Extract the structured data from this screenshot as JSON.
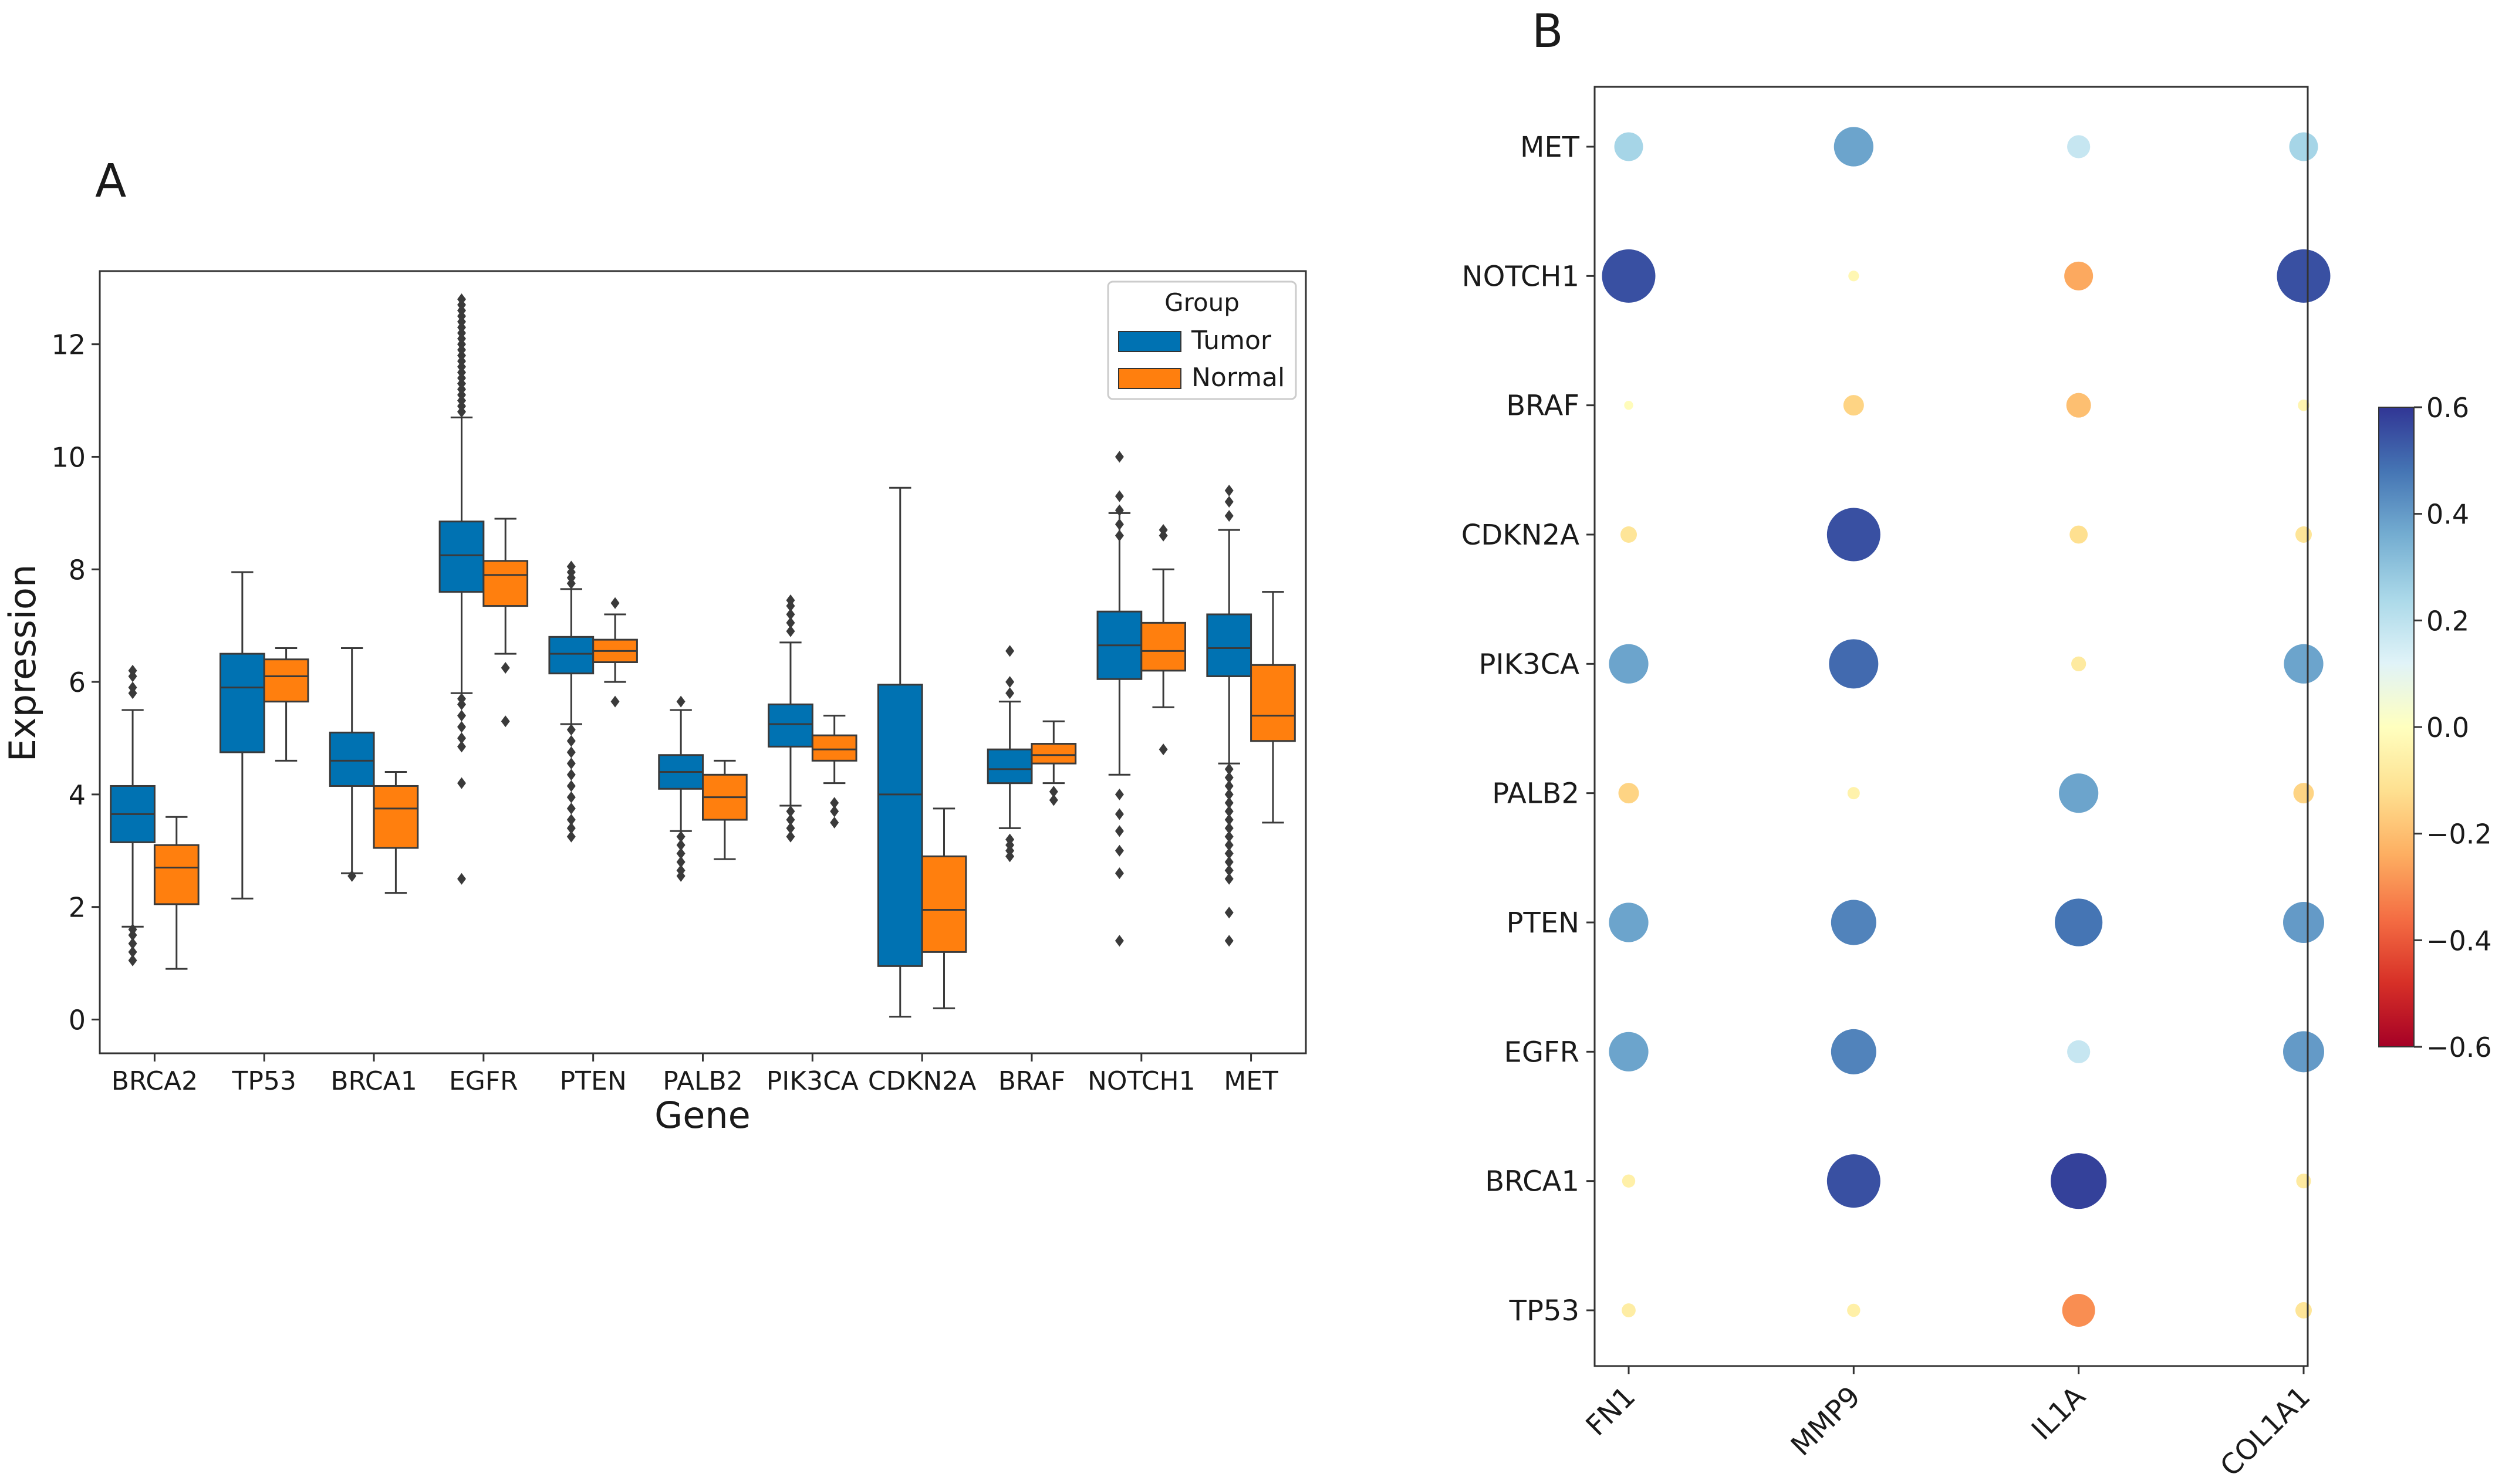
{
  "chart_data": [
    {
      "type": "box",
      "panel_label": "A",
      "title": "",
      "xlabel": "Gene",
      "ylabel": "Expression",
      "ylim": [
        -0.6,
        13.3
      ],
      "yticks": [
        0,
        2,
        4,
        6,
        8,
        10,
        12
      ],
      "categories": [
        "BRCA2",
        "TP53",
        "BRCA1",
        "EGFR",
        "PTEN",
        "PALB2",
        "PIK3CA",
        "CDKN2A",
        "BRAF",
        "NOTCH1",
        "MET"
      ],
      "legend": {
        "title": "Group",
        "position": "top-right"
      },
      "series": [
        {
          "name": "Tumor",
          "color": "#0072B2",
          "boxes": [
            {
              "q1": 3.15,
              "median": 3.65,
              "q3": 4.15,
              "whislo": 1.65,
              "whishi": 5.5,
              "fliers": [
                6.2,
                6.1,
                5.9,
                5.8,
                1.6,
                1.5,
                1.35,
                1.2,
                1.05
              ]
            },
            {
              "q1": 4.75,
              "median": 5.9,
              "q3": 6.5,
              "whislo": 2.15,
              "whishi": 7.95,
              "fliers": []
            },
            {
              "q1": 4.15,
              "median": 4.6,
              "q3": 5.1,
              "whislo": 2.6,
              "whishi": 6.6,
              "fliers": [
                2.55
              ]
            },
            {
              "q1": 7.6,
              "median": 8.25,
              "q3": 8.85,
              "whislo": 5.8,
              "whishi": 10.7,
              "fliers": [
                12.8,
                12.7,
                12.6,
                12.5,
                12.4,
                12.3,
                12.2,
                12.1,
                12.0,
                11.9,
                11.8,
                11.7,
                11.6,
                11.5,
                11.4,
                11.3,
                11.2,
                11.1,
                11.0,
                10.9,
                10.8,
                5.7,
                5.6,
                5.4,
                5.2,
                5.0,
                4.85,
                4.2,
                2.5
              ]
            },
            {
              "q1": 6.15,
              "median": 6.5,
              "q3": 6.8,
              "whislo": 5.25,
              "whishi": 7.65,
              "fliers": [
                8.05,
                7.95,
                7.85,
                7.75,
                5.15,
                4.95,
                4.75,
                4.55,
                4.35,
                4.15,
                3.95,
                3.75,
                3.55,
                3.4,
                3.25
              ]
            },
            {
              "q1": 4.1,
              "median": 4.4,
              "q3": 4.7,
              "whislo": 3.35,
              "whishi": 5.5,
              "fliers": [
                5.65,
                3.25,
                3.1,
                2.95,
                2.8,
                2.65,
                2.55
              ]
            },
            {
              "q1": 4.85,
              "median": 5.25,
              "q3": 5.6,
              "whislo": 3.8,
              "whishi": 6.7,
              "fliers": [
                7.45,
                7.35,
                7.2,
                7.05,
                6.9,
                3.7,
                3.55,
                3.4,
                3.25
              ]
            },
            {
              "q1": 0.95,
              "median": 4.0,
              "q3": 5.95,
              "whislo": 0.05,
              "whishi": 9.45,
              "fliers": []
            },
            {
              "q1": 4.2,
              "median": 4.45,
              "q3": 4.8,
              "whislo": 3.4,
              "whishi": 5.65,
              "fliers": [
                6.55,
                6.0,
                5.8,
                3.2,
                3.1,
                3.0,
                2.9
              ]
            },
            {
              "q1": 6.05,
              "median": 6.65,
              "q3": 7.25,
              "whislo": 4.35,
              "whishi": 9.0,
              "fliers": [
                10.0,
                9.3,
                9.05,
                8.8,
                8.6,
                4.0,
                3.65,
                3.35,
                3.0,
                2.6,
                1.4
              ]
            },
            {
              "q1": 6.1,
              "median": 6.6,
              "q3": 7.2,
              "whislo": 4.55,
              "whishi": 8.7,
              "fliers": [
                9.4,
                9.2,
                8.95,
                4.45,
                4.3,
                4.15,
                4.0,
                3.85,
                3.7,
                3.55,
                3.4,
                3.25,
                3.1,
                2.95,
                2.8,
                2.65,
                2.5,
                1.9,
                1.4
              ]
            }
          ]
        },
        {
          "name": "Normal",
          "color": "#FF7F0E",
          "boxes": [
            {
              "q1": 2.05,
              "median": 2.7,
              "q3": 3.1,
              "whislo": 0.9,
              "whishi": 3.6,
              "fliers": []
            },
            {
              "q1": 5.65,
              "median": 6.1,
              "q3": 6.4,
              "whislo": 4.6,
              "whishi": 6.6,
              "fliers": []
            },
            {
              "q1": 3.05,
              "median": 3.75,
              "q3": 4.15,
              "whislo": 2.25,
              "whishi": 4.4,
              "fliers": []
            },
            {
              "q1": 7.35,
              "median": 7.9,
              "q3": 8.15,
              "whislo": 6.5,
              "whishi": 8.9,
              "fliers": [
                6.25,
                5.3
              ]
            },
            {
              "q1": 6.35,
              "median": 6.55,
              "q3": 6.75,
              "whislo": 6.0,
              "whishi": 7.2,
              "fliers": [
                7.4,
                5.65
              ]
            },
            {
              "q1": 3.55,
              "median": 3.95,
              "q3": 4.35,
              "whislo": 2.85,
              "whishi": 4.6,
              "fliers": []
            },
            {
              "q1": 4.6,
              "median": 4.8,
              "q3": 5.05,
              "whislo": 4.2,
              "whishi": 5.4,
              "fliers": [
                3.85,
                3.7,
                3.5
              ]
            },
            {
              "q1": 1.2,
              "median": 1.95,
              "q3": 2.9,
              "whislo": 0.2,
              "whishi": 3.75,
              "fliers": []
            },
            {
              "q1": 4.55,
              "median": 4.7,
              "q3": 4.9,
              "whislo": 4.2,
              "whishi": 5.3,
              "fliers": [
                4.05,
                3.9
              ]
            },
            {
              "q1": 6.2,
              "median": 6.55,
              "q3": 7.05,
              "whislo": 5.55,
              "whishi": 8.0,
              "fliers": [
                8.7,
                8.6,
                4.8
              ]
            },
            {
              "q1": 4.95,
              "median": 5.4,
              "q3": 6.3,
              "whislo": 3.5,
              "whishi": 7.6,
              "fliers": []
            }
          ]
        }
      ]
    },
    {
      "type": "scatter",
      "subtype": "dot-heatmap",
      "panel_label": "B",
      "title": "",
      "x_categories": [
        "FN1",
        "MMP9",
        "IL1A",
        "COL1A1"
      ],
      "y_categories": [
        "TP53",
        "BRCA1",
        "EGFR",
        "PTEN",
        "PALB2",
        "PIK3CA",
        "CDKN2A",
        "BRAF",
        "NOTCH1",
        "MET"
      ],
      "colorbar": {
        "vmin": -0.6,
        "vmax": 0.6,
        "ticks": [
          "0.6",
          "0.4",
          "0.2",
          "0.0",
          "−0.2",
          "−0.4",
          "−0.6"
        ],
        "cmap": "RdYlBu"
      },
      "values": [
        {
          "y": "MET",
          "x": "FN1",
          "value": 0.25
        },
        {
          "y": "MET",
          "x": "MMP9",
          "value": 0.38
        },
        {
          "y": "MET",
          "x": "IL1A",
          "value": 0.18
        },
        {
          "y": "MET",
          "x": "COL1A1",
          "value": 0.25
        },
        {
          "y": "NOTCH1",
          "x": "FN1",
          "value": 0.55
        },
        {
          "y": "NOTCH1",
          "x": "MMP9",
          "value": -0.03
        },
        {
          "y": "NOTCH1",
          "x": "IL1A",
          "value": -0.25
        },
        {
          "y": "NOTCH1",
          "x": "COL1A1",
          "value": 0.55
        },
        {
          "y": "BRAF",
          "x": "FN1",
          "value": -0.01
        },
        {
          "y": "BRAF",
          "x": "MMP9",
          "value": -0.15
        },
        {
          "y": "BRAF",
          "x": "IL1A",
          "value": -0.2
        },
        {
          "y": "BRAF",
          "x": "COL1A1",
          "value": -0.04
        },
        {
          "y": "CDKN2A",
          "x": "FN1",
          "value": -0.1
        },
        {
          "y": "CDKN2A",
          "x": "MMP9",
          "value": 0.55
        },
        {
          "y": "CDKN2A",
          "x": "IL1A",
          "value": -0.12
        },
        {
          "y": "CDKN2A",
          "x": "COL1A1",
          "value": -0.1
        },
        {
          "y": "PIK3CA",
          "x": "FN1",
          "value": 0.38
        },
        {
          "y": "PIK3CA",
          "x": "MMP9",
          "value": 0.5
        },
        {
          "y": "PIK3CA",
          "x": "IL1A",
          "value": -0.08
        },
        {
          "y": "PIK3CA",
          "x": "COL1A1",
          "value": 0.38
        },
        {
          "y": "PALB2",
          "x": "FN1",
          "value": -0.15
        },
        {
          "y": "PALB2",
          "x": "MMP9",
          "value": -0.05
        },
        {
          "y": "PALB2",
          "x": "IL1A",
          "value": 0.38
        },
        {
          "y": "PALB2",
          "x": "COL1A1",
          "value": -0.15
        },
        {
          "y": "PTEN",
          "x": "FN1",
          "value": 0.38
        },
        {
          "y": "PTEN",
          "x": "MMP9",
          "value": 0.45
        },
        {
          "y": "PTEN",
          "x": "IL1A",
          "value": 0.48
        },
        {
          "y": "PTEN",
          "x": "COL1A1",
          "value": 0.4
        },
        {
          "y": "EGFR",
          "x": "FN1",
          "value": 0.38
        },
        {
          "y": "EGFR",
          "x": "MMP9",
          "value": 0.45
        },
        {
          "y": "EGFR",
          "x": "IL1A",
          "value": 0.18
        },
        {
          "y": "EGFR",
          "x": "COL1A1",
          "value": 0.4
        },
        {
          "y": "BRCA1",
          "x": "FN1",
          "value": -0.06
        },
        {
          "y": "BRCA1",
          "x": "MMP9",
          "value": 0.55
        },
        {
          "y": "BRCA1",
          "x": "IL1A",
          "value": 0.58
        },
        {
          "y": "BRCA1",
          "x": "COL1A1",
          "value": -0.08
        },
        {
          "y": "TP53",
          "x": "FN1",
          "value": -0.07
        },
        {
          "y": "TP53",
          "x": "MMP9",
          "value": -0.06
        },
        {
          "y": "TP53",
          "x": "IL1A",
          "value": -0.3
        },
        {
          "y": "TP53",
          "x": "COL1A1",
          "value": -0.1
        }
      ]
    }
  ]
}
